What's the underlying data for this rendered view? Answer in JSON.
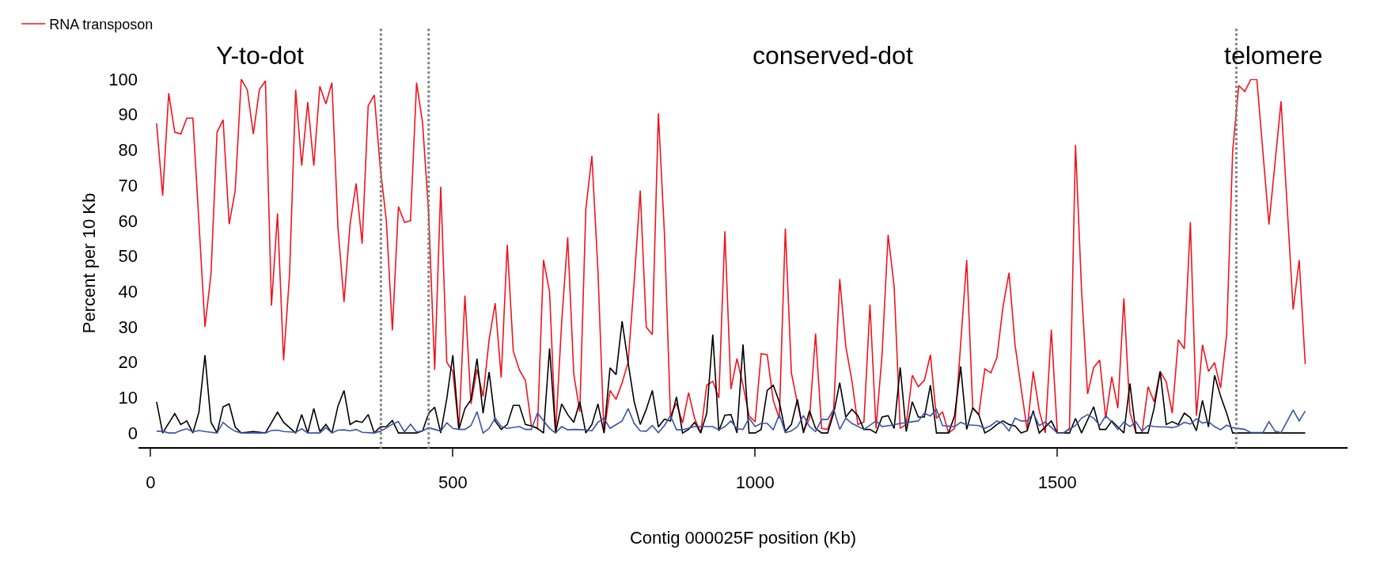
{
  "chart_data": {
    "type": "line",
    "xlabel": "Contig 000025F position (Kb)",
    "ylabel": "Percent per 10 Kb",
    "xlim": [
      -20,
      1980
    ],
    "xticks": [
      0,
      500,
      1000,
      1500
    ],
    "ylim": [
      -4,
      100
    ],
    "yticks": [
      0,
      10,
      20,
      30,
      40,
      50,
      60,
      70,
      80,
      90,
      100
    ],
    "legend": "top left",
    "marker": "none",
    "line_style": "solid",
    "annotations": [
      "Y-to-dot",
      "conserved-dot",
      "telomere"
    ],
    "ref_lines": [
      {
        "axis": "x",
        "value": 381,
        "color": "#808080",
        "line_style": "dotted"
      },
      {
        "axis": "x",
        "value": 460,
        "color": "#808080",
        "line_style": "dotted"
      },
      {
        "axis": "x",
        "value": 1796,
        "color": "#808080",
        "line_style": "dotted"
      }
    ],
    "series": [
      {
        "name": "RNA transposon",
        "color": "#f0141e",
        "x": [
          10,
          20,
          30,
          40,
          50,
          60,
          70,
          90,
          100,
          110,
          120,
          130,
          140,
          150,
          160,
          170,
          180,
          190,
          200,
          210,
          220,
          230,
          240,
          250,
          260,
          270,
          280,
          290,
          300,
          310,
          320,
          330,
          340,
          350,
          360,
          370,
          380,
          390,
          400,
          410,
          420,
          430,
          440,
          450,
          460,
          470,
          480,
          490,
          500,
          510,
          520,
          530,
          540,
          550,
          560,
          570,
          580,
          590,
          600,
          610,
          620,
          630,
          640,
          650,
          660,
          670,
          680,
          690,
          700,
          710,
          720,
          730,
          740,
          750,
          760,
          770,
          780,
          790,
          800,
          810,
          820,
          830,
          840,
          850,
          860,
          870,
          880,
          890,
          900,
          910,
          920,
          930,
          940,
          950,
          960,
          970,
          980,
          990,
          1000,
          1010,
          1020,
          1030,
          1040,
          1050,
          1060,
          1070,
          1080,
          1090,
          1100,
          1110,
          1120,
          1130,
          1140,
          1150,
          1160,
          1170,
          1180,
          1190,
          1200,
          1210,
          1220,
          1230,
          1240,
          1250,
          1260,
          1270,
          1280,
          1290,
          1300,
          1310,
          1320,
          1330,
          1350,
          1360,
          1370,
          1380,
          1390,
          1400,
          1410,
          1420,
          1430,
          1440,
          1450,
          1460,
          1470,
          1480,
          1490,
          1500,
          1510,
          1520,
          1530,
          1540,
          1550,
          1560,
          1570,
          1580,
          1590,
          1600,
          1610,
          1620,
          1630,
          1640,
          1650,
          1660,
          1670,
          1680,
          1690,
          1700,
          1710,
          1720,
          1730,
          1740,
          1750,
          1760,
          1770,
          1780,
          1790,
          1800,
          1810,
          1820,
          1830,
          1850,
          1870,
          1890,
          1900,
          1910
        ],
        "values": [
          87.5,
          67,
          96,
          85,
          84.5,
          89,
          89,
          30,
          45,
          85,
          88.5,
          59,
          68.5,
          100,
          97,
          84.5,
          97,
          99.5,
          36,
          62,
          20.5,
          45,
          97,
          75.5,
          93.5,
          75.5,
          98,
          93,
          99,
          58,
          37,
          59,
          70.5,
          53.5,
          92.5,
          95.5,
          75,
          60,
          29,
          64,
          59.5,
          60,
          99,
          87.5,
          62,
          17.8,
          69.6,
          20,
          17.4,
          1,
          38.8,
          8.2,
          18,
          10.3,
          26.4,
          36.7,
          15.7,
          53.2,
          23.2,
          17.8,
          14.9,
          2,
          1.3,
          48.9,
          39.9,
          0,
          31.3,
          55.3,
          16.7,
          6,
          63.2,
          78.3,
          46,
          0,
          12,
          9.5,
          14.2,
          20,
          42.8,
          68.5,
          29.9,
          27.8,
          90.3,
          56.4,
          4.9,
          8.4,
          2.8,
          11.4,
          4.1,
          0,
          13.5,
          14.6,
          9.9,
          57,
          12.4,
          21,
          13.5,
          4.9,
          3.1,
          22.4,
          22.1,
          9.2,
          4.1,
          57.8,
          17,
          8.4,
          0.6,
          4.1,
          28.1,
          1.3,
          1,
          6.7,
          43.5,
          24.5,
          14.9,
          2.4,
          3.1,
          36.3,
          1.3,
          22.1,
          56,
          41.4,
          1.3,
          2.4,
          16.3,
          13.1,
          14.9,
          22.1,
          4.1,
          6,
          0,
          1.3,
          48.9,
          7.1,
          5.2,
          18.1,
          17,
          21.3,
          35.6,
          45.3,
          24.9,
          12.7,
          0.9,
          17.4,
          6.3,
          0,
          29.2,
          0,
          0,
          1.3,
          81.4,
          40.3,
          11,
          18.5,
          20.6,
          4.1,
          15.9,
          7,
          38.1,
          5.9,
          0,
          0,
          13.1,
          8.8,
          17.4,
          14.5,
          5.6,
          26.3,
          23.8,
          59.6,
          4.9,
          24.9,
          17.4,
          19.9,
          12.7,
          27.8,
          79.8,
          98.2,
          96.5,
          99.9,
          99.9,
          58.9,
          93.7,
          34.9,
          48.9,
          19.5
        ]
      },
      {
        "color": "#000000",
        "x": [
          10,
          20,
          40,
          50,
          60,
          70,
          80,
          90,
          100,
          110,
          120,
          130,
          140,
          150,
          170,
          190,
          210,
          220,
          240,
          250,
          260,
          270,
          280,
          290,
          300,
          310,
          320,
          330,
          340,
          350,
          360,
          370,
          380,
          390,
          400,
          410,
          440,
          450,
          460,
          470,
          480,
          490,
          500,
          510,
          520,
          530,
          540,
          550,
          560,
          570,
          580,
          590,
          600,
          610,
          620,
          630,
          640,
          650,
          660,
          670,
          680,
          690,
          700,
          710,
          720,
          730,
          740,
          750,
          760,
          770,
          780,
          790,
          800,
          810,
          820,
          830,
          840,
          850,
          860,
          870,
          880,
          890,
          900,
          910,
          920,
          930,
          940,
          950,
          960,
          970,
          980,
          990,
          1000,
          1010,
          1020,
          1030,
          1040,
          1050,
          1060,
          1070,
          1080,
          1090,
          1100,
          1110,
          1120,
          1130,
          1140,
          1150,
          1160,
          1170,
          1180,
          1190,
          1200,
          1210,
          1220,
          1230,
          1240,
          1250,
          1260,
          1270,
          1280,
          1290,
          1300,
          1320,
          1330,
          1340,
          1350,
          1360,
          1370,
          1380,
          1390,
          1400,
          1410,
          1420,
          1430,
          1440,
          1450,
          1460,
          1470,
          1490,
          1500,
          1520,
          1530,
          1540,
          1560,
          1570,
          1580,
          1590,
          1600,
          1610,
          1620,
          1630,
          1650,
          1660,
          1670,
          1680,
          1690,
          1700,
          1710,
          1720,
          1730,
          1740,
          1750,
          1760,
          1770,
          1780,
          1790,
          1910
        ],
        "values": [
          8.8,
          0,
          5.5,
          2.4,
          3.4,
          0,
          5.9,
          22,
          3,
          0,
          7.4,
          8.2,
          1.7,
          0,
          0.4,
          0,
          5.9,
          3,
          0,
          5.2,
          0,
          6.9,
          0.4,
          2.4,
          0,
          7.6,
          12,
          2.4,
          3.4,
          3,
          5.2,
          0,
          1.7,
          1.8,
          3.5,
          0,
          0,
          0.6,
          5.6,
          7.3,
          0,
          9.7,
          22,
          1,
          6.9,
          9.4,
          21,
          5.6,
          17.2,
          3.4,
          1,
          2.4,
          7.8,
          7.8,
          2.4,
          2,
          1.3,
          0,
          23.9,
          0,
          8.2,
          5.2,
          3,
          8.8,
          0,
          2.4,
          8.2,
          0,
          18.4,
          16.5,
          31.6,
          19.8,
          8.8,
          2.4,
          6.7,
          12,
          1.7,
          3.9,
          3.4,
          10.2,
          0,
          1,
          3,
          0,
          5.6,
          27.8,
          0.6,
          5,
          5.2,
          0,
          25,
          0,
          0,
          1,
          12,
          13.5,
          8.8,
          0.4,
          2.4,
          9.5,
          0,
          6.3,
          1.3,
          0,
          0,
          5.6,
          14.2,
          4.5,
          6.7,
          4.9,
          1,
          1,
          0,
          4.5,
          4.9,
          1.3,
          18.5,
          0.4,
          8.8,
          4.5,
          4.5,
          13.5,
          0,
          0,
          4.9,
          18.8,
          1,
          7.1,
          5.2,
          0,
          1,
          2.4,
          3.4,
          2.4,
          2,
          0,
          0.6,
          6.3,
          0,
          3.4,
          0,
          0,
          4.1,
          0,
          7.4,
          1,
          1,
          3.4,
          1.7,
          0,
          14,
          0,
          0,
          7,
          17.4,
          2.4,
          3.2,
          2.4,
          5.6,
          4.3,
          0.6,
          9.2,
          1.7,
          16.3,
          10.4,
          5.6,
          0,
          0
        ]
      },
      {
        "color": "#3a53a4",
        "x": [
          10,
          20,
          30,
          40,
          50,
          60,
          70,
          80,
          90,
          100,
          110,
          120,
          130,
          140,
          150,
          190,
          200,
          210,
          220,
          240,
          250,
          260,
          280,
          290,
          300,
          310,
          320,
          330,
          340,
          350,
          370,
          380,
          390,
          400,
          410,
          420,
          430,
          440,
          450,
          460,
          470,
          480,
          490,
          500,
          510,
          520,
          530,
          540,
          550,
          560,
          570,
          580,
          590,
          610,
          620,
          630,
          640,
          660,
          670,
          680,
          690,
          700,
          720,
          730,
          740,
          750,
          760,
          780,
          790,
          800,
          810,
          820,
          830,
          840,
          850,
          860,
          870,
          880,
          900,
          920,
          930,
          940,
          950,
          960,
          970,
          980,
          990,
          1000,
          1010,
          1020,
          1030,
          1040,
          1050,
          1060,
          1070,
          1080,
          1090,
          1100,
          1110,
          1120,
          1130,
          1140,
          1150,
          1160,
          1180,
          1200,
          1210,
          1230,
          1240,
          1270,
          1280,
          1290,
          1300,
          1310,
          1330,
          1340,
          1350,
          1370,
          1380,
          1390,
          1400,
          1410,
          1420,
          1430,
          1440,
          1450,
          1460,
          1470,
          1480,
          1500,
          1510,
          1530,
          1540,
          1550,
          1560,
          1570,
          1580,
          1590,
          1600,
          1610,
          1620,
          1630,
          1640,
          1650,
          1660,
          1670,
          1680,
          1690,
          1700,
          1710,
          1720,
          1730,
          1740,
          1750,
          1760,
          1770,
          1780,
          1790,
          1810,
          1820,
          1840,
          1850,
          1860,
          1870,
          1890,
          1900,
          1910
        ],
        "values": [
          0.5,
          0.5,
          0,
          0,
          0.7,
          1.2,
          0.3,
          0.7,
          0.4,
          0.2,
          0,
          3,
          1.5,
          0.5,
          0,
          0,
          0.7,
          0.8,
          0.4,
          0.2,
          1.2,
          0,
          0,
          1.5,
          0,
          0.8,
          0.9,
          0.6,
          1,
          0.2,
          0,
          0.5,
          1.4,
          2.5,
          3.2,
          0.3,
          2.5,
          0.3,
          0.6,
          1.5,
          1,
          0.5,
          2.9,
          1.3,
          1,
          1,
          2.1,
          6,
          0,
          1.3,
          4.2,
          1.8,
          1.3,
          1.8,
          1,
          1,
          5.6,
          1.3,
          0,
          1.8,
          0.9,
          1,
          0.9,
          0.6,
          3,
          4.2,
          1.3,
          3.4,
          6.9,
          2.7,
          0.6,
          0.5,
          2.1,
          0.1,
          2.1,
          4.9,
          0.9,
          0.9,
          1.8,
          1.8,
          1.8,
          0.9,
          1.8,
          3.4,
          1.2,
          1,
          4.2,
          1.8,
          2.7,
          2.7,
          0.9,
          5.2,
          0.1,
          0.6,
          1.8,
          4.9,
          1.8,
          0.4,
          3.8,
          3.8,
          6.7,
          1,
          4.2,
          2.7,
          1,
          3.4,
          1.8,
          2.3,
          2.7,
          3.4,
          5.6,
          4.8,
          6.7,
          2.1,
          1.8,
          3,
          2.3,
          2.1,
          1.3,
          2.1,
          3.4,
          2.7,
          0.6,
          4.2,
          3.4,
          3.4,
          5.6,
          2.1,
          3.1,
          0,
          0,
          2.1,
          4.2,
          5.2,
          4.2,
          2.1,
          4.9,
          3.1,
          1,
          3.1,
          1.8,
          3.1,
          0.5,
          2.1,
          1.8,
          1.7,
          1.7,
          1.5,
          2,
          3,
          2.5,
          4,
          2.8,
          3.2,
          1.8,
          0.9,
          2.2,
          1.5,
          1,
          0.1,
          0.1,
          3.2,
          0.5,
          0.1,
          6.5,
          3.4,
          6.2
        ]
      }
    ]
  }
}
